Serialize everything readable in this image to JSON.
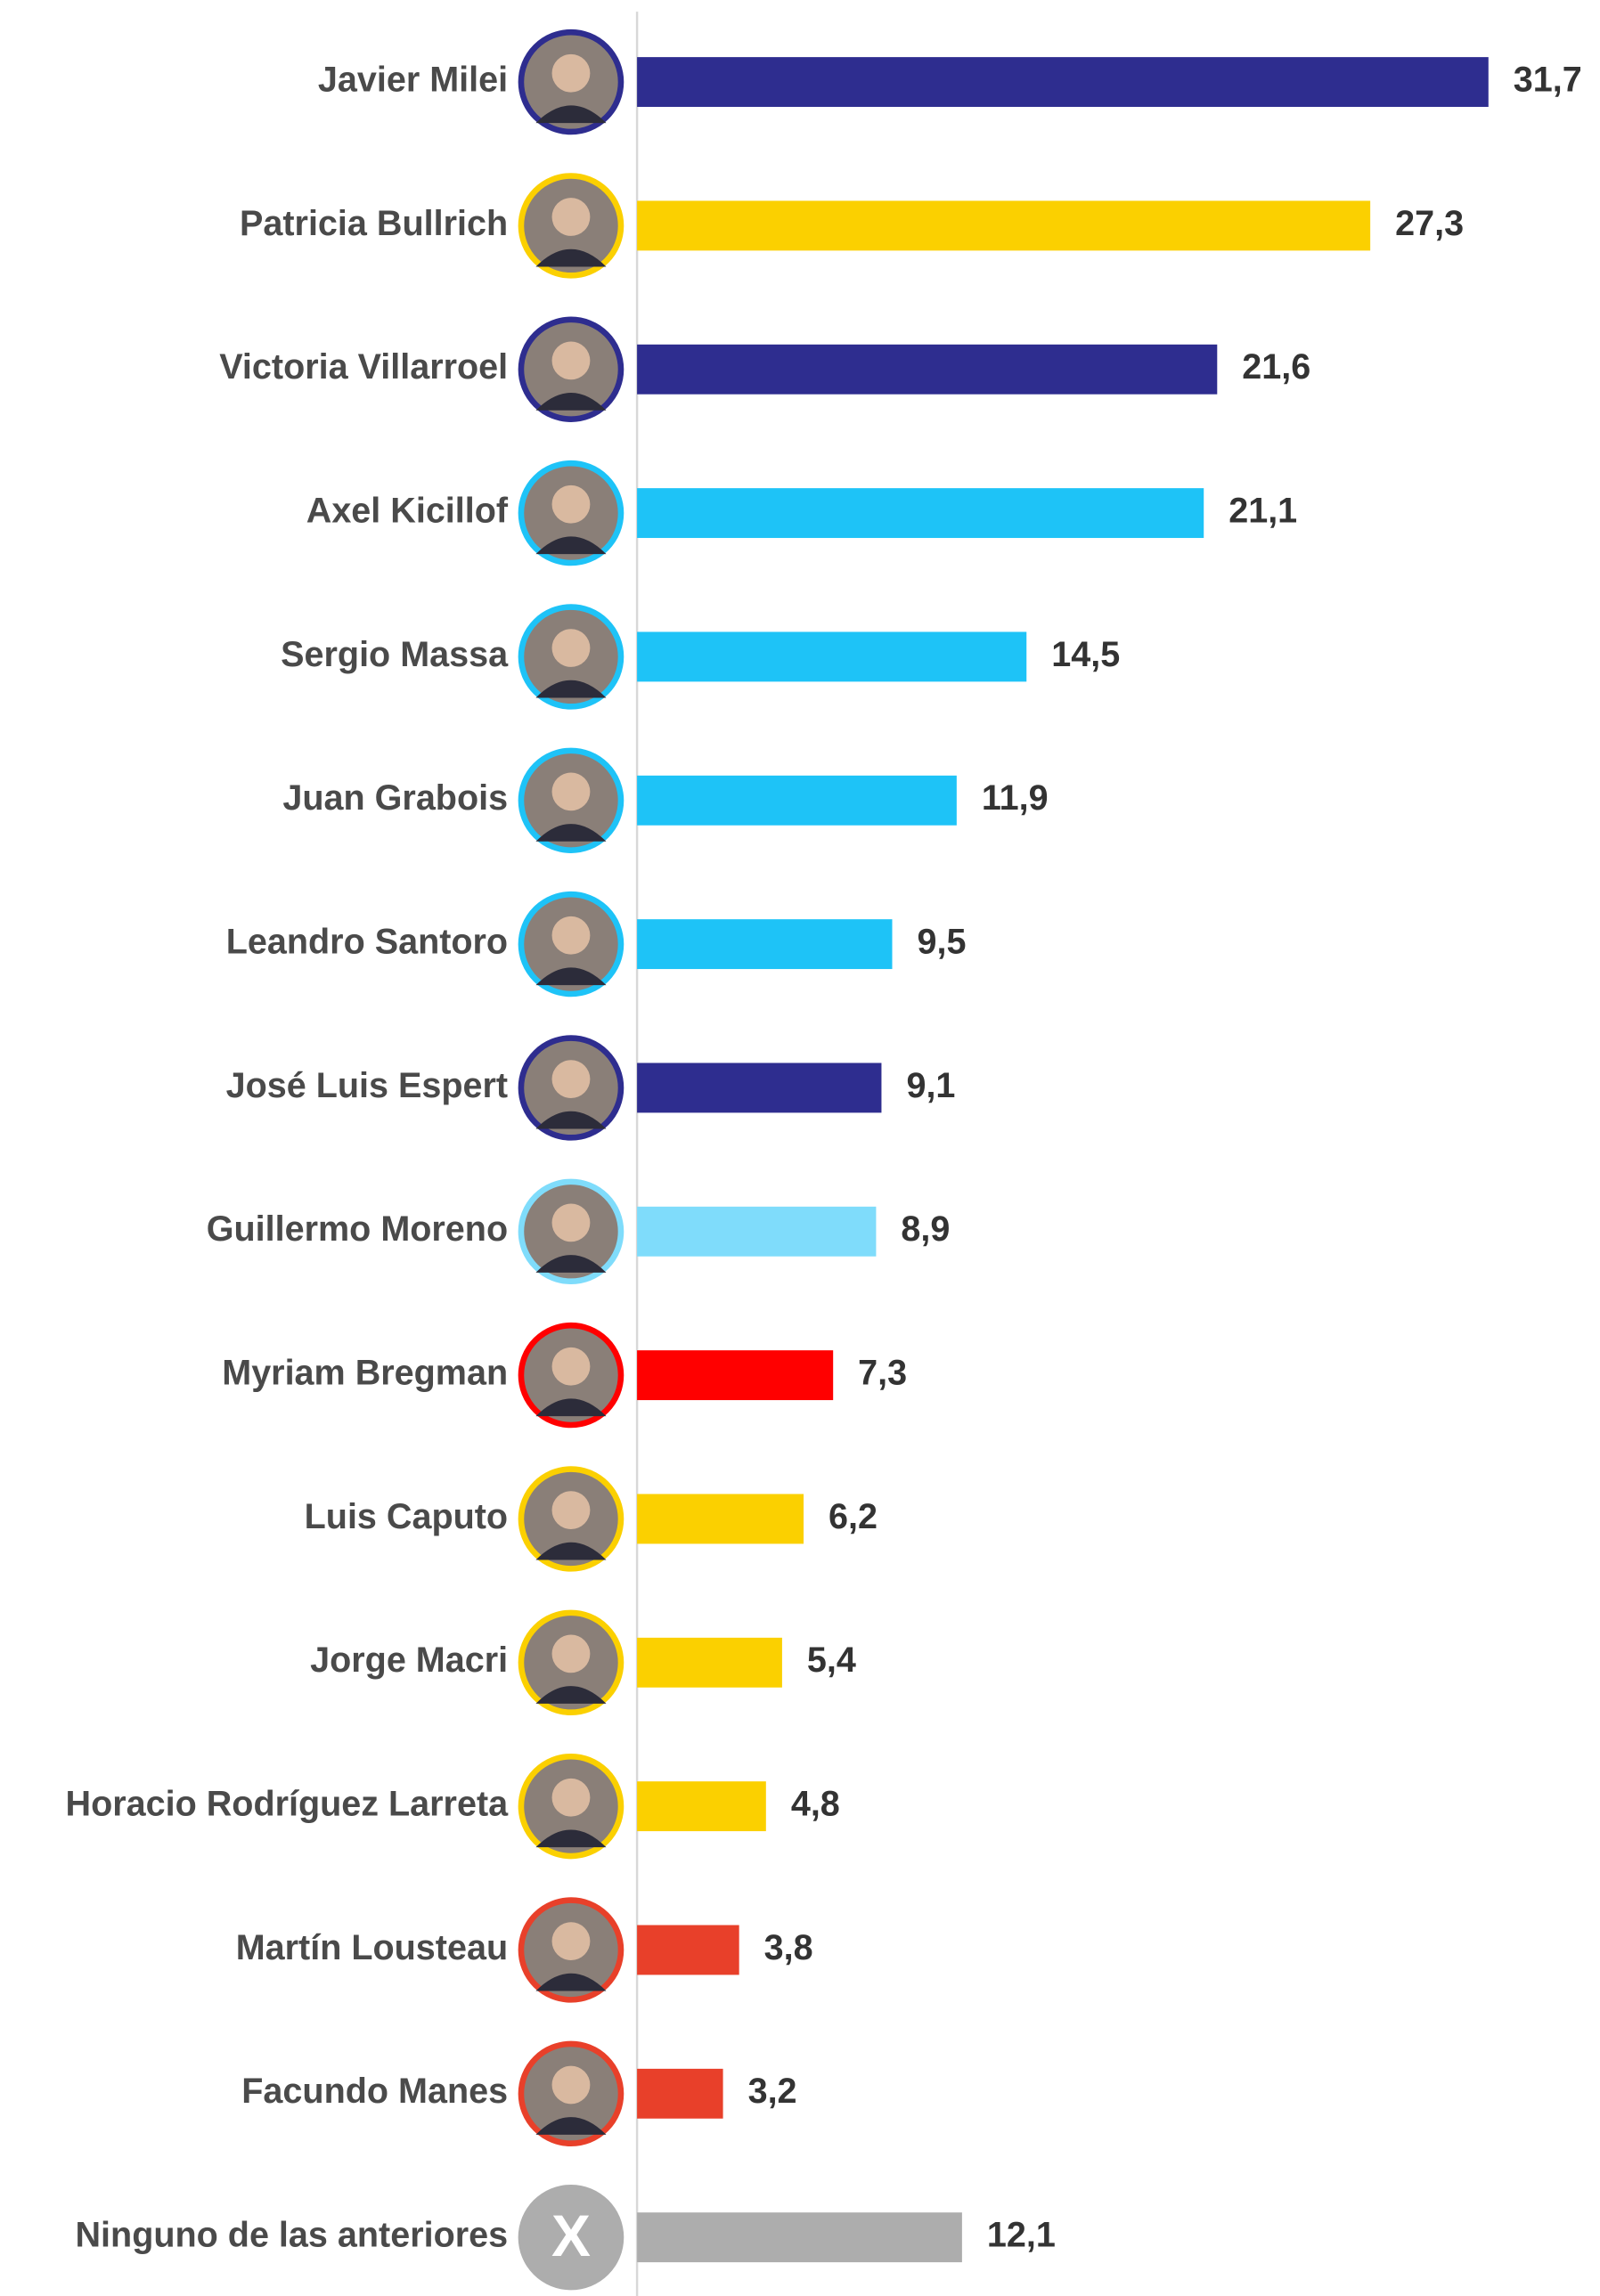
{
  "chart_data": {
    "type": "bar",
    "orientation": "horizontal",
    "categories": [
      "Javier Milei",
      "Patricia Bullrich",
      "Victoria Villarroel",
      "Axel Kicillof",
      "Sergio Massa",
      "Juan Grabois",
      "Leandro Santoro",
      "José Luis Espert",
      "Guillermo Moreno",
      "Myriam Bregman",
      "Luis Caputo",
      "Jorge Macri",
      "Horacio Rodríguez Larreta",
      "Martín Lousteau",
      "Facundo Manes",
      "Ninguno de las anteriores"
    ],
    "values": [
      31.7,
      27.3,
      21.6,
      21.1,
      14.5,
      11.9,
      9.5,
      9.1,
      8.9,
      7.3,
      6.2,
      5.4,
      4.8,
      3.8,
      3.2,
      12.1
    ],
    "value_labels": [
      "31,7",
      "27,3",
      "21,6",
      "21,1",
      "14,5",
      "11,9",
      "9,5",
      "9,1",
      "8,9",
      "7,3",
      "6,2",
      "5,4",
      "4,8",
      "3,8",
      "3,2",
      "12,1"
    ],
    "colors": [
      "#2e2d8f",
      "#fbd000",
      "#2e2d8f",
      "#1ec3f7",
      "#1ec3f7",
      "#1ec3f7",
      "#1ec3f7",
      "#2e2d8f",
      "#7fdcfb",
      "#ff0000",
      "#fbd000",
      "#fbd000",
      "#fbd000",
      "#e8402a",
      "#e8402a",
      "#adadad"
    ],
    "annotation": "X"
  }
}
